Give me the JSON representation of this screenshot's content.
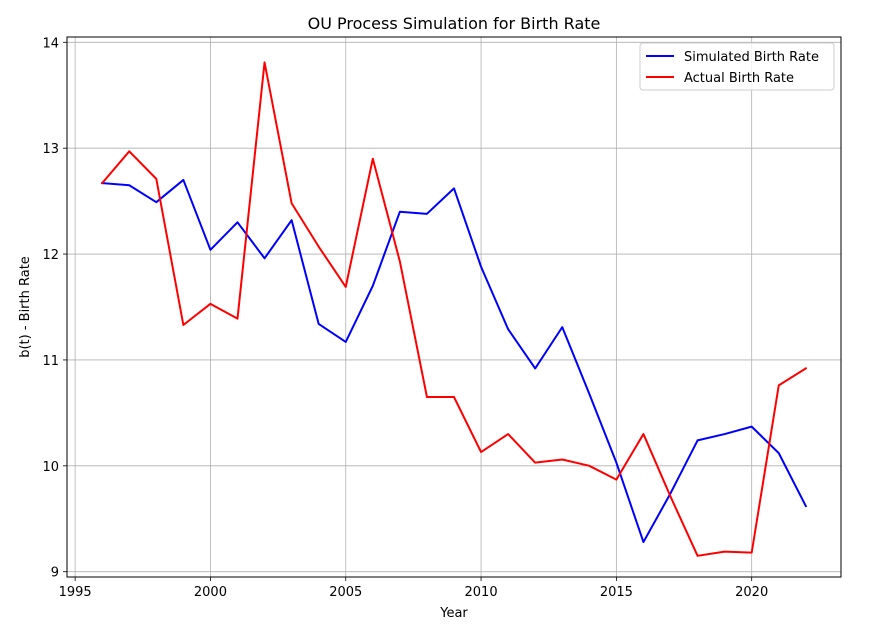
{
  "chart_data": {
    "type": "line",
    "title": "OU Process Simulation for Birth Rate",
    "xlabel": "Year",
    "ylabel": "b(t) - Birth Rate",
    "xlim": [
      1994.7,
      2023.3
    ],
    "ylim": [
      8.95,
      14.05
    ],
    "x_ticks": [
      1995,
      2000,
      2005,
      2010,
      2015,
      2020
    ],
    "y_ticks": [
      9,
      10,
      11,
      12,
      13,
      14
    ],
    "grid": true,
    "legend_position": "top-right",
    "x": [
      1996,
      1997,
      1998,
      1999,
      2000,
      2001,
      2002,
      2003,
      2004,
      2005,
      2006,
      2007,
      2008,
      2009,
      2010,
      2011,
      2012,
      2013,
      2014,
      2015,
      2016,
      2017,
      2018,
      2019,
      2020,
      2021,
      2022
    ],
    "series": [
      {
        "name": "Simulated Birth Rate",
        "color": "#0000ff",
        "values": [
          12.67,
          12.65,
          12.49,
          12.7,
          12.04,
          12.3,
          11.96,
          12.32,
          11.34,
          11.17,
          11.7,
          12.4,
          12.38,
          12.62,
          11.88,
          11.29,
          10.92,
          11.31,
          10.68,
          10.03,
          9.28,
          9.74,
          10.24,
          10.3,
          10.37,
          10.12,
          9.62
        ]
      },
      {
        "name": "Actual Birth Rate",
        "color": "#ff0000",
        "values": [
          12.67,
          12.97,
          12.71,
          11.33,
          11.53,
          11.39,
          13.81,
          12.48,
          12.07,
          11.69,
          12.9,
          11.93,
          10.65,
          10.65,
          10.13,
          10.3,
          10.03,
          10.06,
          10.0,
          9.87,
          10.3,
          9.71,
          9.15,
          9.19,
          9.18,
          10.76,
          10.92
        ]
      }
    ]
  }
}
